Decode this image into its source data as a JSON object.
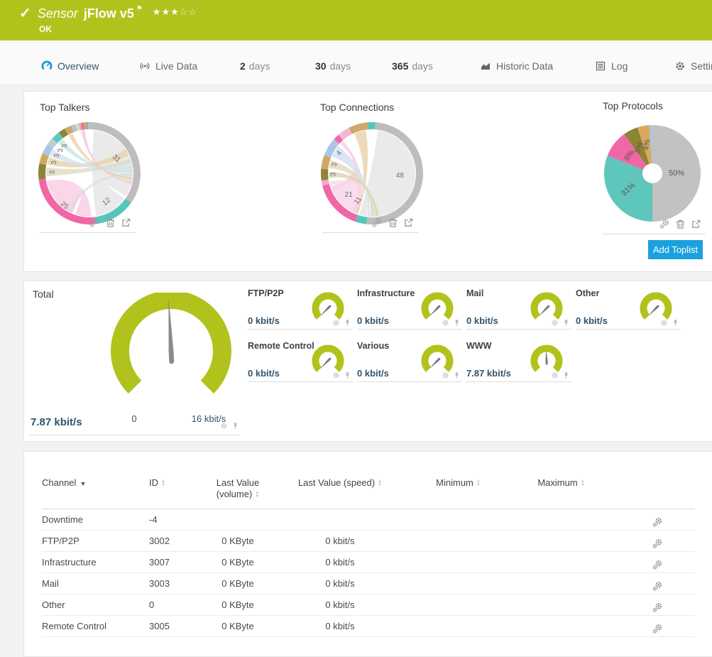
{
  "colors": {
    "brand_green": "#b2c21c",
    "accent_blue": "#1ba1dd",
    "value_text": "#33536b",
    "ring_gray": "#bdbdbd",
    "teal": "#55c6bc",
    "pink": "#f067a6",
    "olive": "#8d8435",
    "tan": "#d1a964",
    "light_blue": "#a9c7e4"
  },
  "icons": {
    "sort_asc": "▲",
    "sort_desc": "▼"
  },
  "header": {
    "check_icon": "✓",
    "kind": "Sensor",
    "title": "jFlow v5",
    "flag_icon": "⚑",
    "stars_filled": "★★★",
    "stars_empty": "☆☆",
    "status": "OK"
  },
  "tabs": {
    "items": [
      {
        "label": "Overview",
        "active": true
      },
      {
        "label": "Live Data",
        "active": false
      },
      {
        "strong": "2",
        "label": "days",
        "active": false
      },
      {
        "strong": "30",
        "label": "days",
        "active": false
      },
      {
        "strong": "365",
        "label": "days",
        "active": false
      },
      {
        "label": "Historic Data",
        "active": false
      },
      {
        "label": "Log",
        "active": false
      },
      {
        "label": "Settings",
        "active": false
      }
    ]
  },
  "toplists": {
    "add_button_label": "Add Toplist",
    "panels": [
      {
        "title": "Top Talkers",
        "type": "chord",
        "chart": {
          "segments": [
            {
              "value": 31,
              "from": -2,
              "to": 125,
              "color": "#bdbdbd",
              "label": "31",
              "rot": 40,
              "labelR": 0.6
            },
            {
              "value": 12,
              "from": 125,
              "to": 173,
              "color": "#55c6bc",
              "label": "12",
              "rot": -40,
              "labelR": 0.65
            },
            {
              "value": 25,
              "from": 173,
              "to": 263,
              "color": "#f067a6",
              "label": "25",
              "rot": 40,
              "labelR": 0.8
            },
            {
              "value": 5,
              "from": 263,
              "to": 281,
              "color": "#8d8435",
              "label": "5",
              "rot": -75,
              "labelR": 0.72
            },
            {
              "value": 3,
              "from": 281,
              "to": 293,
              "color": "#d1a964",
              "label": "3",
              "rot": -90,
              "labelR": 0.72
            },
            {
              "value": 3,
              "from": 293,
              "to": 304,
              "color": "#a9c7e4",
              "label": "3",
              "rot": -90,
              "labelR": 0.72
            },
            {
              "value": 3,
              "from": 304,
              "to": 313,
              "color": "#c2cbd4",
              "label": "3",
              "rot": -90,
              "labelR": 0.72
            },
            {
              "value": 3,
              "from": 313,
              "to": 323,
              "color": "#62c8bf",
              "label": "3",
              "rot": -90,
              "labelR": 0.72
            },
            {
              "from": 323,
              "to": 331,
              "color": "#8d8435"
            },
            {
              "from": 331,
              "to": 339,
              "color": "#d1a964"
            },
            {
              "from": 339,
              "to": 344,
              "color": "#a9c7e4"
            },
            {
              "from": 344,
              "to": 348,
              "color": "#e3d9bd"
            },
            {
              "from": 348,
              "to": 351,
              "color": "#ef93c2"
            },
            {
              "from": 351,
              "to": 353,
              "color": "#d96a6a"
            },
            {
              "from": 353,
              "to": 356,
              "color": "#e8a43e"
            },
            {
              "from": 356,
              "to": 358,
              "color": "#79a8d8"
            }
          ],
          "ribbons": [
            {
              "a": [
                6,
                122
              ],
              "b": [
                126,
                171
              ],
              "c": "#e8e8e8",
              "o": 0.9
            },
            {
              "a": [
                178,
                199
              ],
              "b": [
                203,
                260
              ],
              "c": "#f9cfe5",
              "o": 0.85
            },
            {
              "a": [
                282,
                292
              ],
              "b": [
                56,
                66
              ],
              "c": "#e9d2ab",
              "o": 0.85
            },
            {
              "a": [
                266,
                278
              ],
              "b": [
                70,
                77
              ],
              "c": "#ddd9c0",
              "o": 0.8
            },
            {
              "a": [
                294,
                303
              ],
              "b": [
                79,
                84
              ],
              "c": "#d3e0f2",
              "o": 0.8
            },
            {
              "a": [
                314,
                322
              ],
              "b": [
                85,
                89
              ],
              "c": "#c4e6e2",
              "o": 0.8
            },
            {
              "a": [
                349,
                354
              ],
              "b": [
                101,
                104
              ],
              "c": "#f2c6dc",
              "o": 0.8
            },
            {
              "a": [
                331,
                337
              ],
              "b": [
                95,
                99
              ],
              "c": "#e9d2ab",
              "o": 0.8
            },
            {
              "a": [
                205,
                212
              ],
              "b": [
                90,
                94
              ],
              "c": "#d9d9d9",
              "o": 0.6
            }
          ],
          "labels": []
        }
      },
      {
        "title": "Top Connections",
        "type": "chord",
        "chart": {
          "segments": [
            {
              "from": 355,
              "to": 364,
              "color": "#55c6bc"
            },
            {
              "value": 48,
              "from": 4,
              "to": 186,
              "color": "#bdbdbd",
              "label": "48",
              "rot": 0,
              "labelR": 0.55
            },
            {
              "from": 186,
              "to": 199,
              "color": "#55c6bc"
            },
            {
              "value": 21,
              "from": 199,
              "to": 256,
              "color": "#f067a6",
              "label": "21",
              "rot": 0,
              "labelR": 0.62
            },
            {
              "from": 256,
              "to": 262,
              "color": "#f4a8cd"
            },
            {
              "value": 3,
              "from": 262,
              "to": 275,
              "color": "#8d8435",
              "label": "3",
              "rot": -90,
              "labelR": 0.75
            },
            {
              "value": 3,
              "from": 275,
              "to": 291,
              "color": "#d1a964",
              "label": "3",
              "rot": -85,
              "labelR": 0.75
            },
            {
              "value": 4,
              "from": 291,
              "to": 312,
              "color": "#a9c7e4",
              "label": "4",
              "rot": -55,
              "labelR": 0.75
            },
            {
              "from": 312,
              "to": 319,
              "color": "#f067a6"
            },
            {
              "from": 319,
              "to": 333,
              "color": "#f2b8d4"
            },
            {
              "from": 333,
              "to": 355,
              "color": "#cfa86a"
            }
          ],
          "ribbons": [
            {
              "a": [
                8,
                183
              ],
              "b": [
                187,
                197
              ],
              "c": "#e8e8e8",
              "o": 0.9
            },
            {
              "a": [
                201,
                252
              ],
              "b": [
                313,
                318
              ],
              "c": "#f8cde3",
              "o": 0.85
            },
            {
              "a": [
                208,
                246
              ],
              "b": [
                253,
                259
              ],
              "c": "#fadeed",
              "o": 0.9
            },
            {
              "a": [
                293,
                309
              ],
              "b": [
                183,
                186
              ],
              "c": "#d5e2f3",
              "o": 0.85
            },
            {
              "a": [
                336,
                352
              ],
              "b": [
                199,
                202
              ],
              "c": "#ead3ac",
              "o": 0.85
            },
            {
              "a": [
                277,
                288
              ],
              "b": [
                176,
                181
              ],
              "c": "#e2dabc",
              "o": 0.8
            },
            {
              "a": [
                264,
                272
              ],
              "b": [
                171,
                175
              ],
              "c": "#d8d4b0",
              "o": 0.8
            }
          ],
          "labels": [
            {
              "text": "11",
              "angle": 207,
              "r": 0.6,
              "rot": -55
            }
          ]
        }
      },
      {
        "title": "Top Protocols",
        "type": "pie",
        "chart": {
          "slices": [
            {
              "pct": 50,
              "label": "50%",
              "color": "#c2c2c2",
              "rot": 0,
              "labelR": 0.5
            },
            {
              "pct": 31,
              "label": "31%",
              "color": "#5fc6bb",
              "rot": -42,
              "labelR": 0.6
            },
            {
              "pct": 9,
              "label": "9%",
              "color": "#f067a6",
              "rot": -55,
              "labelR": 0.6
            },
            {
              "pct": 5,
              "label": "5%",
              "color": "#8d8435",
              "rot": -72,
              "labelR": 0.6
            },
            {
              "pct": 4,
              "label": "4%",
              "color": "#d9a95e",
              "rot": -82,
              "labelR": 0.6
            },
            {
              "pct": 1,
              "color": "#a9c7e4"
            }
          ],
          "hole": 14
        }
      }
    ]
  },
  "gauges": {
    "total": {
      "title": "Total",
      "value": "7.87 kbit/s",
      "min": "0",
      "max": "16 kbit/s",
      "fraction": 0.49
    },
    "cells": [
      {
        "title": "FTP/P2P",
        "value": "0 kbit/s",
        "fraction": 0
      },
      {
        "title": "Infrastructure",
        "value": "0 kbit/s",
        "fraction": 0
      },
      {
        "title": "Mail",
        "value": "0 kbit/s",
        "fraction": 0
      },
      {
        "title": "Other",
        "value": "0 kbit/s",
        "fraction": 0
      },
      {
        "title": "Remote Control",
        "value": "0 kbit/s",
        "fraction": 0
      },
      {
        "title": "Various",
        "value": "0 kbit/s",
        "fraction": 0
      },
      {
        "title": "WWW",
        "value": "7.87 kbit/s",
        "fraction": 0.49
      }
    ]
  },
  "table": {
    "columns": [
      {
        "label": "Channel"
      },
      {
        "label": "ID"
      },
      {
        "label_line1": "Last Value",
        "label_line2": "(volume)"
      },
      {
        "label": "Last Value (speed)"
      },
      {
        "label": "Minimum"
      },
      {
        "label": "Maximum"
      }
    ],
    "rows": [
      {
        "channel": "Downtime",
        "id": "-4",
        "volume": "",
        "speed": "",
        "min": "",
        "max": ""
      },
      {
        "channel": "FTP/P2P",
        "id": "3002",
        "volume": "0 KByte",
        "speed": "0 kbit/s",
        "min": "",
        "max": ""
      },
      {
        "channel": "Infrastructure",
        "id": "3007",
        "volume": "0 KByte",
        "speed": "0 kbit/s",
        "min": "",
        "max": ""
      },
      {
        "channel": "Mail",
        "id": "3003",
        "volume": "0 KByte",
        "speed": "0 kbit/s",
        "min": "",
        "max": ""
      },
      {
        "channel": "Other",
        "id": "0",
        "volume": "0 KByte",
        "speed": "0 kbit/s",
        "min": "",
        "max": ""
      },
      {
        "channel": "Remote Control",
        "id": "3005",
        "volume": "0 KByte",
        "speed": "0 kbit/s",
        "min": "",
        "max": ""
      }
    ]
  }
}
